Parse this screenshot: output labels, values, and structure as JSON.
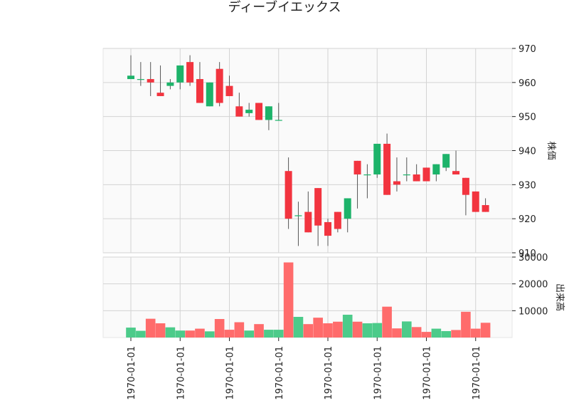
{
  "chart_data": {
    "type": "candlestick",
    "title": "ディーブイエックス",
    "up_color": "#1db36a",
    "down_color": "#f2343f",
    "volume_up_color": "#4ccb8a",
    "volume_down_color": "#ff6b6b",
    "background": "#fafafa",
    "grid": true,
    "price_panel": {
      "ylabel": "株価",
      "ylim": [
        910,
        970
      ],
      "yticks": [
        910,
        920,
        930,
        940,
        950,
        960,
        970
      ]
    },
    "volume_panel": {
      "ylabel": "出来高",
      "ylim": [
        0,
        30000
      ],
      "yticks": [
        10000,
        20000,
        30000
      ],
      "ytick_labels": [
        "10000",
        "20000",
        "30000"
      ]
    },
    "x_tick_labels": [
      "1970-01-01",
      "1970-01-01",
      "1970-01-01",
      "1970-01-01",
      "1970-01-01",
      "1970-01-01",
      "1970-01-01",
      "1970-01-01"
    ],
    "x_tick_indices": [
      0,
      5,
      10,
      15,
      20,
      25,
      30,
      35
    ],
    "candles": [
      {
        "open": 961,
        "high": 968,
        "low": 961,
        "close": 962,
        "volume": 3700
      },
      {
        "open": 961,
        "high": 966,
        "low": 959,
        "close": 961,
        "volume": 2500
      },
      {
        "open": 961,
        "high": 966,
        "low": 956,
        "close": 960,
        "volume": 7000
      },
      {
        "open": 957,
        "high": 965,
        "low": 956,
        "close": 956,
        "volume": 5300
      },
      {
        "open": 959,
        "high": 961,
        "low": 958,
        "close": 960,
        "volume": 3800
      },
      {
        "open": 960,
        "high": 965,
        "low": 958,
        "close": 965,
        "volume": 2600
      },
      {
        "open": 966,
        "high": 968,
        "low": 959,
        "close": 960,
        "volume": 2600
      },
      {
        "open": 961,
        "high": 966,
        "low": 954,
        "close": 954,
        "volume": 3300
      },
      {
        "open": 953,
        "high": 960,
        "low": 953,
        "close": 960,
        "volume": 2300
      },
      {
        "open": 964,
        "high": 966,
        "low": 953,
        "close": 954,
        "volume": 6900
      },
      {
        "open": 959,
        "high": 962,
        "low": 956,
        "close": 956,
        "volume": 2900
      },
      {
        "open": 953,
        "high": 957,
        "low": 950,
        "close": 950,
        "volume": 5700
      },
      {
        "open": 951,
        "high": 954,
        "low": 950,
        "close": 952,
        "volume": 2600
      },
      {
        "open": 954,
        "high": 954,
        "low": 949,
        "close": 949,
        "volume": 5000
      },
      {
        "open": 949,
        "high": 953,
        "low": 946,
        "close": 953,
        "volume": 2900
      },
      {
        "open": 949,
        "high": 954,
        "low": 949,
        "close": 949,
        "volume": 2900
      },
      {
        "open": 934,
        "high": 938,
        "low": 917,
        "close": 920,
        "volume": 28000
      },
      {
        "open": 921,
        "high": 925,
        "low": 912,
        "close": 921,
        "volume": 7700
      },
      {
        "open": 922,
        "high": 928,
        "low": 916,
        "close": 916,
        "volume": 5000
      },
      {
        "open": 929,
        "high": 929,
        "low": 912,
        "close": 918,
        "volume": 7400
      },
      {
        "open": 919,
        "high": 920,
        "low": 912,
        "close": 915,
        "volume": 5300
      },
      {
        "open": 922,
        "high": 922,
        "low": 916,
        "close": 917,
        "volume": 5900
      },
      {
        "open": 920,
        "high": 926,
        "low": 916,
        "close": 926,
        "volume": 8500
      },
      {
        "open": 937,
        "high": 937,
        "low": 923,
        "close": 933,
        "volume": 5900
      },
      {
        "open": 933,
        "high": 936,
        "low": 926,
        "close": 933,
        "volume": 5300
      },
      {
        "open": 933,
        "high": 942,
        "low": 932,
        "close": 942,
        "volume": 5400
      },
      {
        "open": 942,
        "high": 945,
        "low": 927,
        "close": 927,
        "volume": 11500
      },
      {
        "open": 931,
        "high": 938,
        "low": 928,
        "close": 930,
        "volume": 3400
      },
      {
        "open": 933,
        "high": 938,
        "low": 931,
        "close": 933,
        "volume": 6000
      },
      {
        "open": 933,
        "high": 936,
        "low": 931,
        "close": 931,
        "volume": 3900
      },
      {
        "open": 935,
        "high": 935,
        "low": 931,
        "close": 931,
        "volume": 2100
      },
      {
        "open": 933,
        "high": 936,
        "low": 931,
        "close": 936,
        "volume": 3300
      },
      {
        "open": 935,
        "high": 939,
        "low": 934,
        "close": 939,
        "volume": 2400
      },
      {
        "open": 934,
        "high": 940,
        "low": 933,
        "close": 933,
        "volume": 2800
      },
      {
        "open": 932,
        "high": 932,
        "low": 921,
        "close": 927,
        "volume": 9600
      },
      {
        "open": 928,
        "high": 928,
        "low": 922,
        "close": 922,
        "volume": 3300
      },
      {
        "open": 924,
        "high": 926,
        "low": 922,
        "close": 922,
        "volume": 5500
      }
    ]
  }
}
